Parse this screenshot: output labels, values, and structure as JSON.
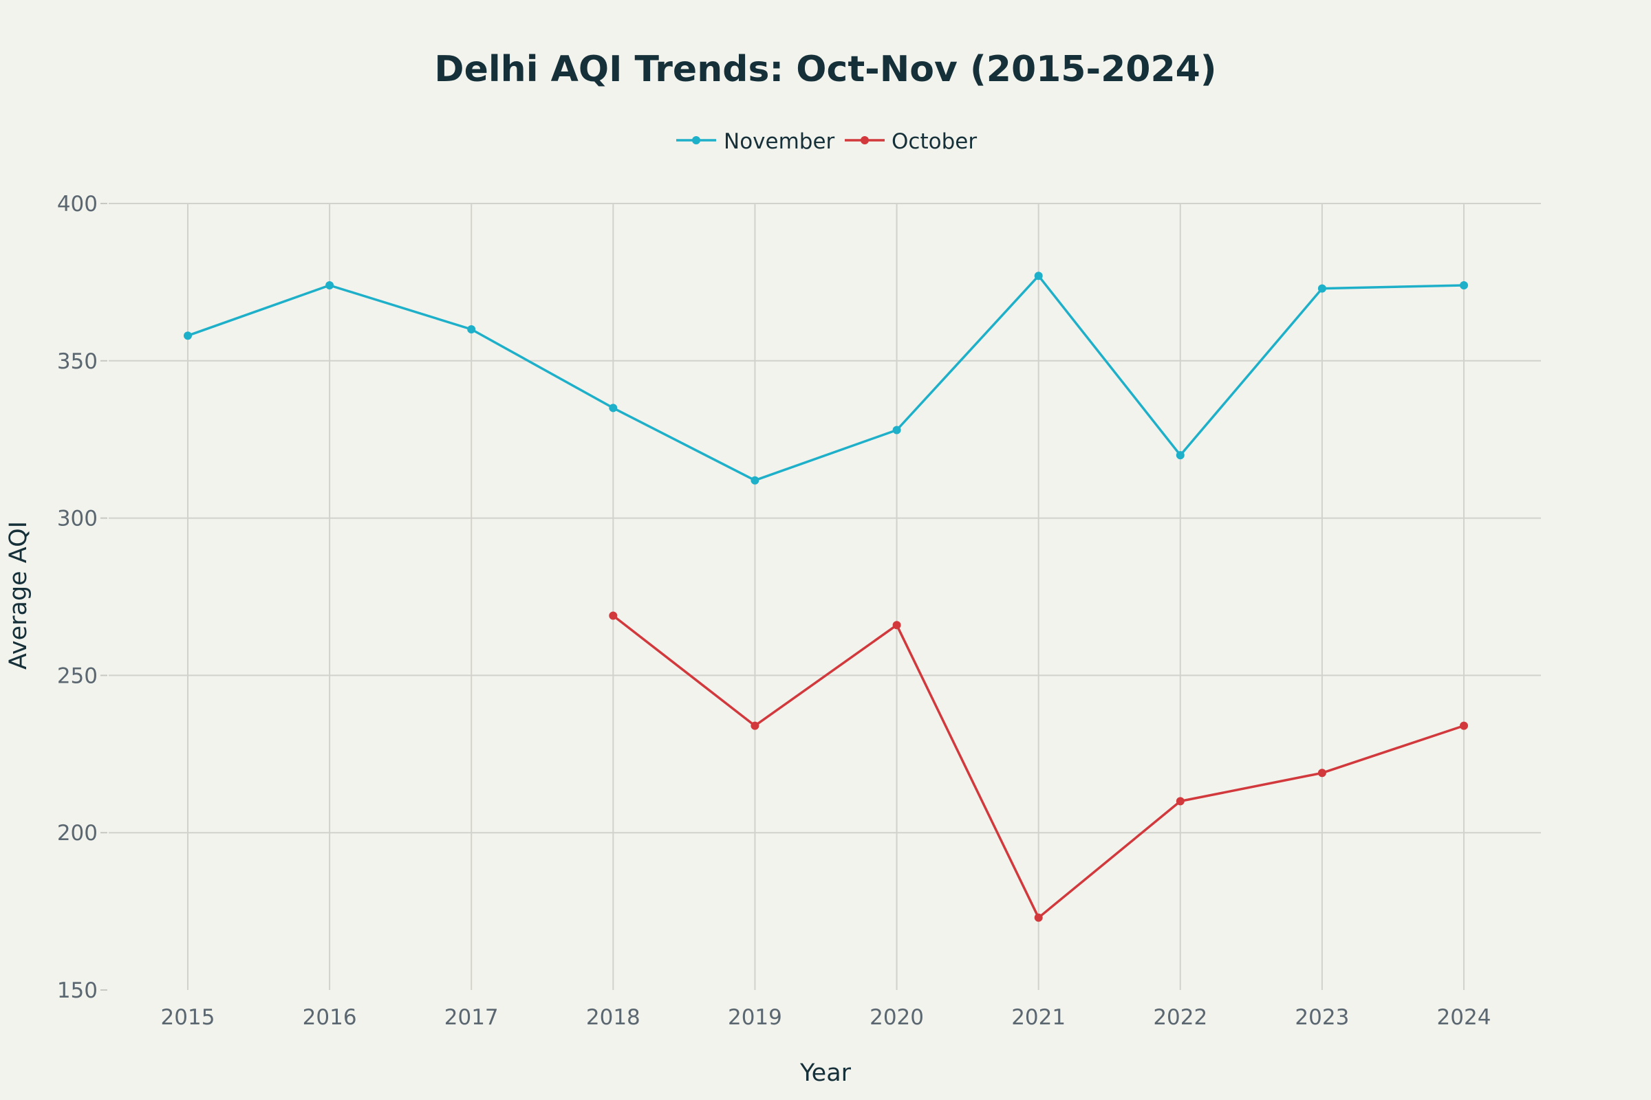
{
  "chart_data": {
    "type": "line",
    "title": "Delhi AQI Trends: Oct-Nov (2015-2024)",
    "xlabel": "Year",
    "ylabel": "Average AQI",
    "categories": [
      "2015",
      "2016",
      "2017",
      "2018",
      "2019",
      "2020",
      "2021",
      "2022",
      "2023",
      "2024"
    ],
    "ylim": [
      150,
      400
    ],
    "yticks": [
      150,
      200,
      250,
      300,
      350,
      400
    ],
    "grid": true,
    "legend_position": "top-center",
    "series": [
      {
        "name": "November",
        "color": "#1fb0c9",
        "values": [
          358,
          374,
          360,
          335,
          312,
          328,
          377,
          320,
          373,
          374
        ]
      },
      {
        "name": "October",
        "color": "#d1393c",
        "values": [
          null,
          null,
          null,
          269,
          234,
          266,
          173,
          210,
          219,
          234
        ]
      }
    ]
  }
}
